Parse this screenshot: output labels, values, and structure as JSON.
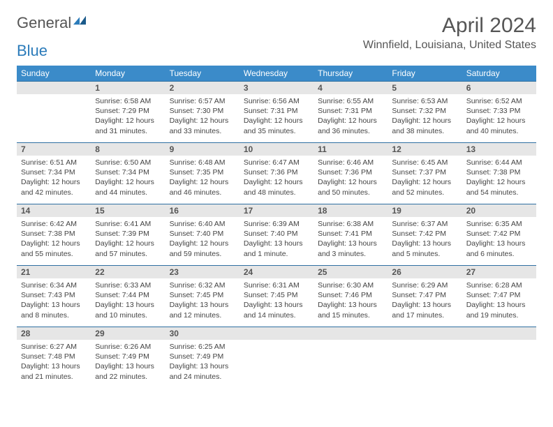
{
  "logo": {
    "text1": "General",
    "text2": "Blue"
  },
  "title": "April 2024",
  "location": "Winnfield, Louisiana, United States",
  "styling": {
    "header_bg": "#3b8bc9",
    "header_fg": "#ffffff",
    "daynum_bg": "#e6e6e6",
    "divider": "#2e6fa1",
    "body_font_size": 10.5,
    "title_font_size": 30,
    "location_font_size": 16,
    "th_font_size": 12
  },
  "weekdays": [
    "Sunday",
    "Monday",
    "Tuesday",
    "Wednesday",
    "Thursday",
    "Friday",
    "Saturday"
  ],
  "weeks": [
    [
      null,
      {
        "n": "1",
        "sr": "6:58 AM",
        "ss": "7:29 PM",
        "dl": "12 hours and 31 minutes."
      },
      {
        "n": "2",
        "sr": "6:57 AM",
        "ss": "7:30 PM",
        "dl": "12 hours and 33 minutes."
      },
      {
        "n": "3",
        "sr": "6:56 AM",
        "ss": "7:31 PM",
        "dl": "12 hours and 35 minutes."
      },
      {
        "n": "4",
        "sr": "6:55 AM",
        "ss": "7:31 PM",
        "dl": "12 hours and 36 minutes."
      },
      {
        "n": "5",
        "sr": "6:53 AM",
        "ss": "7:32 PM",
        "dl": "12 hours and 38 minutes."
      },
      {
        "n": "6",
        "sr": "6:52 AM",
        "ss": "7:33 PM",
        "dl": "12 hours and 40 minutes."
      }
    ],
    [
      {
        "n": "7",
        "sr": "6:51 AM",
        "ss": "7:34 PM",
        "dl": "12 hours and 42 minutes."
      },
      {
        "n": "8",
        "sr": "6:50 AM",
        "ss": "7:34 PM",
        "dl": "12 hours and 44 minutes."
      },
      {
        "n": "9",
        "sr": "6:48 AM",
        "ss": "7:35 PM",
        "dl": "12 hours and 46 minutes."
      },
      {
        "n": "10",
        "sr": "6:47 AM",
        "ss": "7:36 PM",
        "dl": "12 hours and 48 minutes."
      },
      {
        "n": "11",
        "sr": "6:46 AM",
        "ss": "7:36 PM",
        "dl": "12 hours and 50 minutes."
      },
      {
        "n": "12",
        "sr": "6:45 AM",
        "ss": "7:37 PM",
        "dl": "12 hours and 52 minutes."
      },
      {
        "n": "13",
        "sr": "6:44 AM",
        "ss": "7:38 PM",
        "dl": "12 hours and 54 minutes."
      }
    ],
    [
      {
        "n": "14",
        "sr": "6:42 AM",
        "ss": "7:38 PM",
        "dl": "12 hours and 55 minutes."
      },
      {
        "n": "15",
        "sr": "6:41 AM",
        "ss": "7:39 PM",
        "dl": "12 hours and 57 minutes."
      },
      {
        "n": "16",
        "sr": "6:40 AM",
        "ss": "7:40 PM",
        "dl": "12 hours and 59 minutes."
      },
      {
        "n": "17",
        "sr": "6:39 AM",
        "ss": "7:40 PM",
        "dl": "13 hours and 1 minute."
      },
      {
        "n": "18",
        "sr": "6:38 AM",
        "ss": "7:41 PM",
        "dl": "13 hours and 3 minutes."
      },
      {
        "n": "19",
        "sr": "6:37 AM",
        "ss": "7:42 PM",
        "dl": "13 hours and 5 minutes."
      },
      {
        "n": "20",
        "sr": "6:35 AM",
        "ss": "7:42 PM",
        "dl": "13 hours and 6 minutes."
      }
    ],
    [
      {
        "n": "21",
        "sr": "6:34 AM",
        "ss": "7:43 PM",
        "dl": "13 hours and 8 minutes."
      },
      {
        "n": "22",
        "sr": "6:33 AM",
        "ss": "7:44 PM",
        "dl": "13 hours and 10 minutes."
      },
      {
        "n": "23",
        "sr": "6:32 AM",
        "ss": "7:45 PM",
        "dl": "13 hours and 12 minutes."
      },
      {
        "n": "24",
        "sr": "6:31 AM",
        "ss": "7:45 PM",
        "dl": "13 hours and 14 minutes."
      },
      {
        "n": "25",
        "sr": "6:30 AM",
        "ss": "7:46 PM",
        "dl": "13 hours and 15 minutes."
      },
      {
        "n": "26",
        "sr": "6:29 AM",
        "ss": "7:47 PM",
        "dl": "13 hours and 17 minutes."
      },
      {
        "n": "27",
        "sr": "6:28 AM",
        "ss": "7:47 PM",
        "dl": "13 hours and 19 minutes."
      }
    ],
    [
      {
        "n": "28",
        "sr": "6:27 AM",
        "ss": "7:48 PM",
        "dl": "13 hours and 21 minutes."
      },
      {
        "n": "29",
        "sr": "6:26 AM",
        "ss": "7:49 PM",
        "dl": "13 hours and 22 minutes."
      },
      {
        "n": "30",
        "sr": "6:25 AM",
        "ss": "7:49 PM",
        "dl": "13 hours and 24 minutes."
      },
      null,
      null,
      null,
      null
    ]
  ],
  "labels": {
    "sunrise": "Sunrise:",
    "sunset": "Sunset:",
    "daylight": "Daylight:"
  }
}
